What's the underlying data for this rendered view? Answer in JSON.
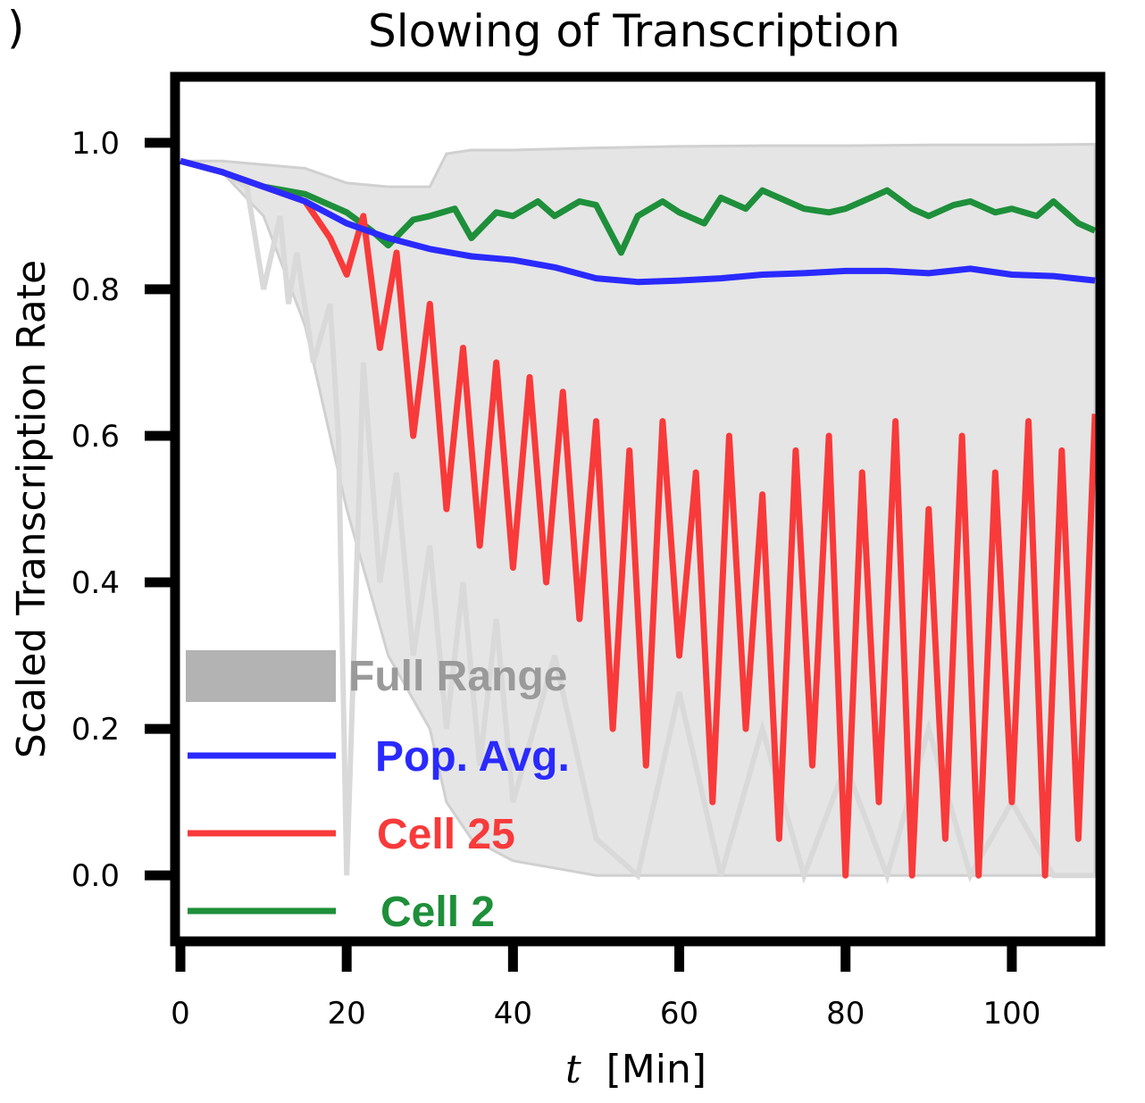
{
  "chart_data": {
    "type": "line",
    "title": "Slowing of Transcription",
    "xlabel_var": "t",
    "xlabel_unit": "[Min]",
    "ylabel": "Scaled Transcription Rate",
    "xlim": [
      0,
      110
    ],
    "ylim": [
      -0.09,
      1.09
    ],
    "xticks": [
      0,
      20,
      40,
      60,
      80,
      100
    ],
    "xtick_labels": [
      "0",
      "20",
      "40",
      "60",
      "80",
      "100"
    ],
    "yticks": [
      0.0,
      0.2,
      0.4,
      0.6,
      0.8,
      1.0
    ],
    "ytick_labels": [
      "0.0",
      "0.2",
      "0.4",
      "0.6",
      "0.8",
      "1.0"
    ],
    "grid": false,
    "legend_position": "lower-left",
    "corner_mark": ")",
    "full_range": {
      "name": "Full Range",
      "color": "#b3b3b3",
      "x": [
        0,
        5,
        10,
        15,
        20,
        25,
        30,
        32,
        35,
        40,
        50,
        60,
        70,
        80,
        90,
        100,
        110
      ],
      "upper": [
        0.975,
        0.975,
        0.97,
        0.965,
        0.945,
        0.94,
        0.94,
        0.985,
        0.99,
        0.99,
        0.993,
        0.995,
        0.996,
        0.996,
        0.997,
        0.997,
        0.998
      ],
      "lower": [
        0.975,
        0.96,
        0.9,
        0.75,
        0.5,
        0.3,
        0.2,
        0.1,
        0.05,
        0.02,
        0.0,
        0.0,
        0.0,
        0.0,
        0.0,
        0.0,
        0.0
      ]
    },
    "series": [
      {
        "name": "Pop. Avg.",
        "color": "#2a2aff",
        "x": [
          0,
          5,
          10,
          15,
          20,
          25,
          30,
          35,
          40,
          45,
          50,
          55,
          60,
          65,
          70,
          75,
          80,
          85,
          90,
          95,
          100,
          105,
          110
        ],
        "y": [
          0.975,
          0.96,
          0.94,
          0.92,
          0.89,
          0.87,
          0.855,
          0.845,
          0.84,
          0.83,
          0.815,
          0.81,
          0.812,
          0.815,
          0.82,
          0.822,
          0.825,
          0.825,
          0.822,
          0.828,
          0.82,
          0.818,
          0.812
        ]
      },
      {
        "name": "Cell 25",
        "color": "#f83a3a",
        "x": [
          0,
          5,
          10,
          15,
          18,
          20,
          22,
          24,
          26,
          28,
          30,
          32,
          34,
          36,
          38,
          40,
          42,
          44,
          46,
          48,
          50,
          52,
          54,
          56,
          58,
          60,
          62,
          64,
          66,
          68,
          70,
          72,
          74,
          76,
          78,
          80,
          82,
          84,
          86,
          88,
          90,
          92,
          94,
          96,
          98,
          100,
          102,
          104,
          106,
          108,
          110
        ],
        "y": [
          0.975,
          0.96,
          0.94,
          0.92,
          0.87,
          0.82,
          0.9,
          0.72,
          0.85,
          0.6,
          0.78,
          0.5,
          0.72,
          0.45,
          0.7,
          0.42,
          0.68,
          0.4,
          0.66,
          0.35,
          0.62,
          0.2,
          0.58,
          0.15,
          0.62,
          0.3,
          0.55,
          0.1,
          0.6,
          0.2,
          0.52,
          0.05,
          0.58,
          0.15,
          0.6,
          0.0,
          0.55,
          0.1,
          0.62,
          0.0,
          0.5,
          0.05,
          0.6,
          0.0,
          0.55,
          0.1,
          0.62,
          0.0,
          0.58,
          0.05,
          0.63
        ]
      },
      {
        "name": "Cell 2",
        "color": "#1e8f3a",
        "x": [
          0,
          5,
          10,
          15,
          20,
          23,
          25,
          28,
          30,
          33,
          35,
          38,
          40,
          43,
          45,
          48,
          50,
          53,
          55,
          58,
          60,
          63,
          65,
          68,
          70,
          73,
          75,
          78,
          80,
          83,
          85,
          88,
          90,
          93,
          95,
          98,
          100,
          103,
          105,
          108,
          110
        ],
        "y": [
          0.975,
          0.96,
          0.94,
          0.93,
          0.905,
          0.88,
          0.86,
          0.895,
          0.9,
          0.91,
          0.87,
          0.905,
          0.9,
          0.92,
          0.9,
          0.92,
          0.915,
          0.85,
          0.9,
          0.92,
          0.905,
          0.89,
          0.925,
          0.91,
          0.935,
          0.92,
          0.91,
          0.905,
          0.91,
          0.925,
          0.935,
          0.91,
          0.9,
          0.915,
          0.92,
          0.905,
          0.91,
          0.9,
          0.92,
          0.89,
          0.88
        ]
      }
    ],
    "ghost_lines": {
      "color": "#d9d9d9",
      "x": [
        0,
        5,
        8,
        10,
        12,
        13,
        14,
        16,
        18,
        19,
        20,
        22,
        24,
        26,
        28,
        30,
        32,
        34,
        36,
        38,
        40,
        45,
        50,
        55,
        60,
        65,
        70,
        75,
        80,
        85,
        90,
        95,
        100,
        105,
        110
      ],
      "y": [
        0.975,
        0.96,
        0.94,
        0.8,
        0.9,
        0.78,
        0.85,
        0.7,
        0.78,
        0.6,
        0.0,
        0.7,
        0.4,
        0.55,
        0.3,
        0.45,
        0.2,
        0.4,
        0.15,
        0.35,
        0.1,
        0.3,
        0.05,
        0.0,
        0.25,
        0.0,
        0.2,
        0.0,
        0.15,
        0.0,
        0.2,
        0.0,
        0.1,
        0.0,
        0.0
      ]
    }
  }
}
